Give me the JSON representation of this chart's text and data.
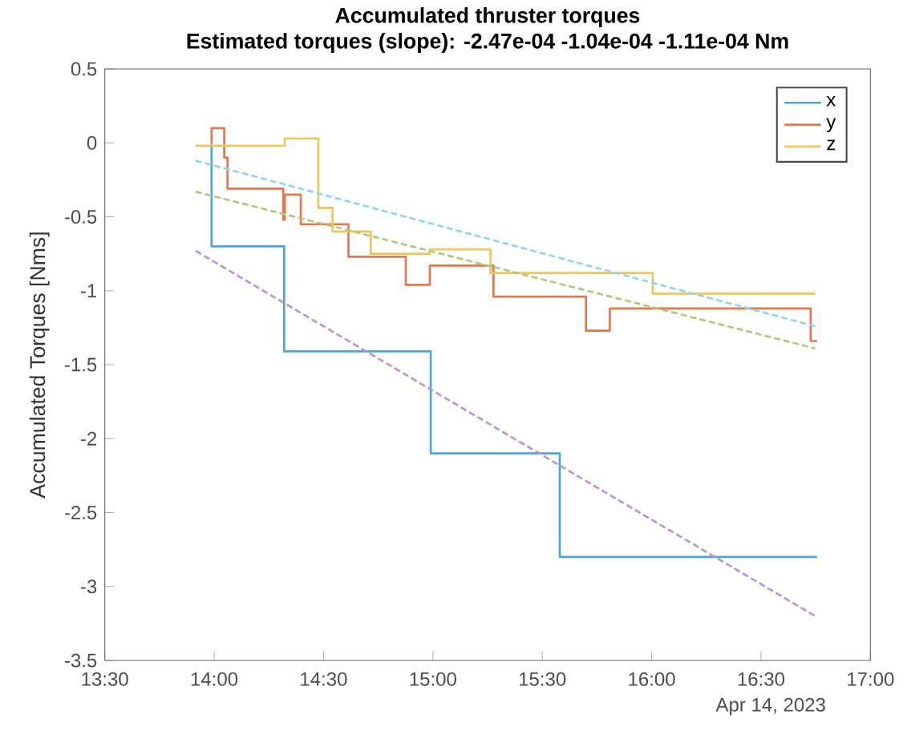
{
  "chart_data": {
    "type": "step",
    "title": "Accumulated thruster torques",
    "subtitle": "Estimated torques (slope): -2.47e-04 -1.04e-04 -1.11e-04 Nm",
    "ylabel": "Accumulated Torques [Nms]",
    "annotations": [
      "Apr 14, 2023"
    ],
    "xlim": [
      13.5,
      17
    ],
    "ylim": [
      -3.5,
      0.5
    ],
    "xticks": [
      {
        "value": 13.5,
        "label": "13:30"
      },
      {
        "value": 14,
        "label": "14:00"
      },
      {
        "value": 14.5,
        "label": "14:30"
      },
      {
        "value": 15,
        "label": "15:00"
      },
      {
        "value": 15.5,
        "label": "15:30"
      },
      {
        "value": 16,
        "label": "16:00"
      },
      {
        "value": 16.5,
        "label": "16:30"
      },
      {
        "value": 17,
        "label": "17:00"
      }
    ],
    "yticks": [
      -3.5,
      -3,
      -2.5,
      -2,
      -1.5,
      -1,
      -0.5,
      0,
      0.5
    ],
    "grid": false,
    "legend": "top right",
    "series": [
      {
        "name": "x",
        "color": "#4da3dc",
        "x": [
          13.988,
          13.988,
          14.32,
          14.99,
          15.58,
          16.756
        ],
        "values": [
          0,
          -0.7,
          -1.41,
          -2.1,
          -2.8,
          -2.8
        ]
      },
      {
        "name": "y",
        "color": "#e3774f",
        "x": [
          13.988,
          13.988,
          14.046,
          14.061,
          14.316,
          14.323,
          14.396,
          14.614,
          14.876,
          14.986,
          15.277,
          15.7,
          15.809,
          16.727,
          16.756
        ],
        "values": [
          0,
          0.1,
          -0.1,
          -0.31,
          -0.52,
          -0.35,
          -0.55,
          -0.77,
          -0.96,
          -0.83,
          -1.04,
          -1.27,
          -1.12,
          -1.34,
          -1.34
        ]
      },
      {
        "name": "z",
        "color": "#f2c55c",
        "x": [
          13.915,
          14.323,
          14.476,
          14.541,
          14.716,
          14.986,
          15.263,
          16.005,
          16.748
        ],
        "values": [
          -0.02,
          0.03,
          -0.44,
          -0.6,
          -0.75,
          -0.72,
          -0.88,
          -1.02,
          -1.02
        ]
      },
      {
        "type": "line",
        "line_style": "dashed",
        "color": "#b994d6",
        "x": [
          13.915,
          16.748
        ],
        "values": [
          -0.73,
          -3.2
        ]
      },
      {
        "type": "line",
        "line_style": "dashed",
        "color": "#94d4ef",
        "x": [
          13.915,
          16.748
        ],
        "values": [
          -0.12,
          -1.24
        ]
      },
      {
        "type": "line",
        "line_style": "dashed",
        "color": "#aecb7c",
        "x": [
          13.915,
          16.748
        ],
        "values": [
          -0.33,
          -1.39
        ]
      }
    ]
  }
}
